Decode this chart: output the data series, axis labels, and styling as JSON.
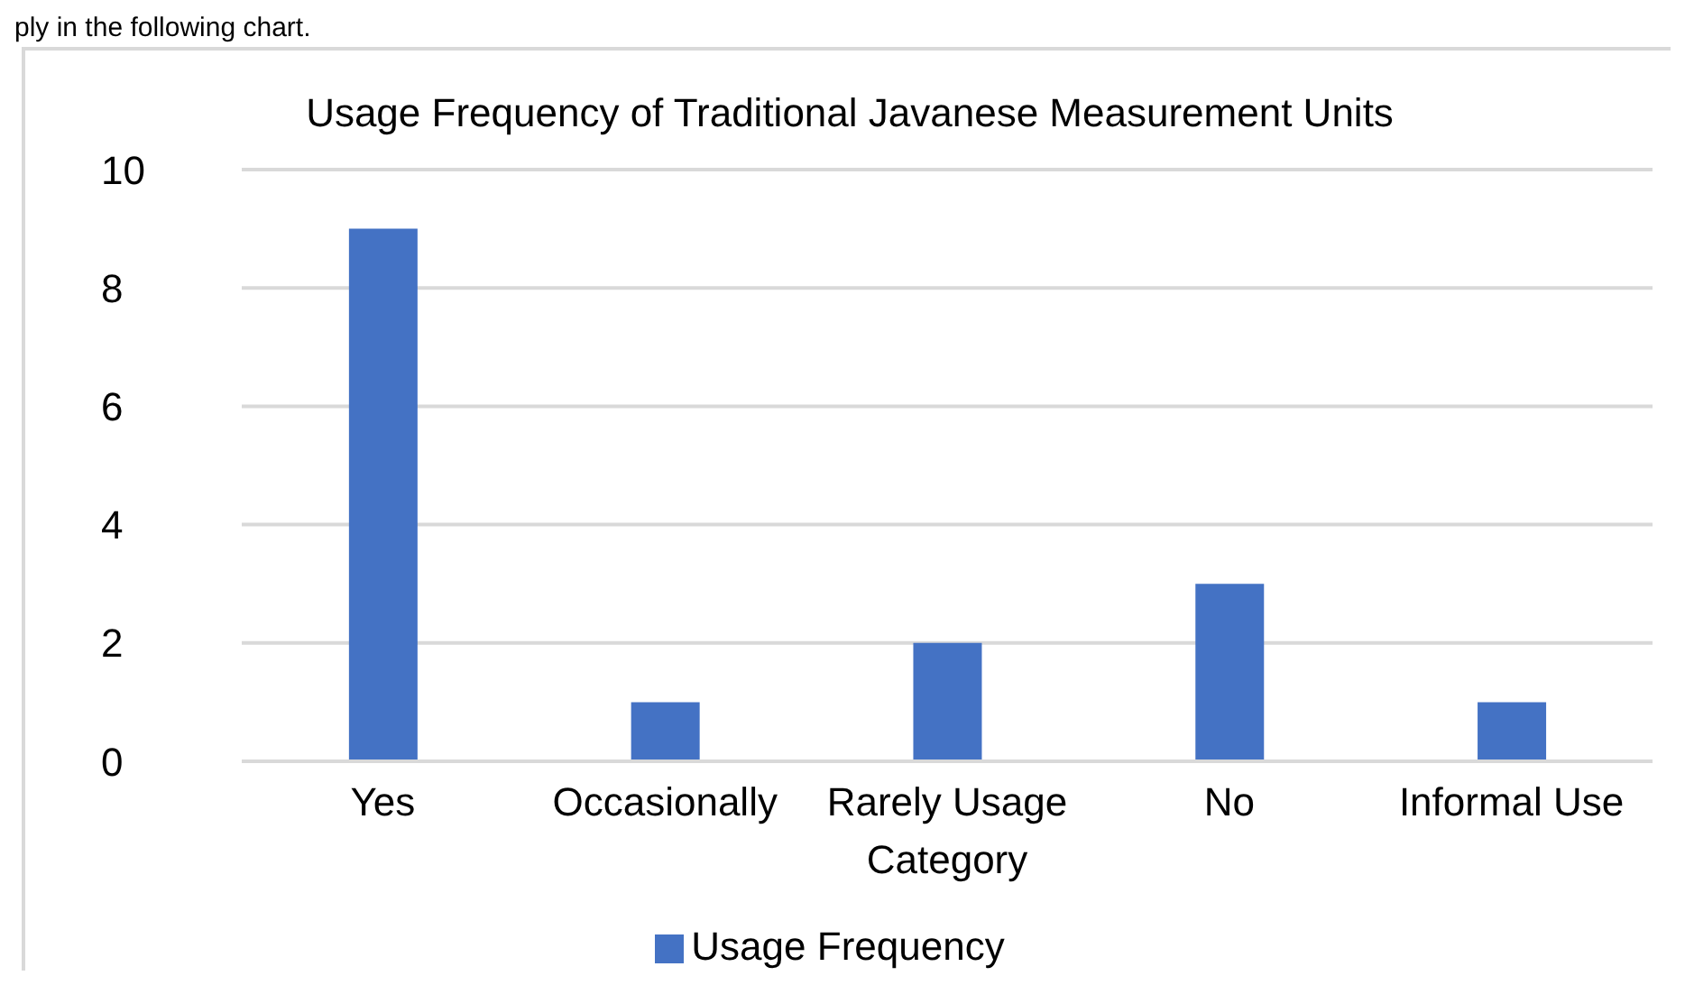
{
  "chart_data": {
    "type": "bar",
    "title": "Usage Frequency of Traditional Javanese Measurement Units",
    "annotations": [
      "ply in the following chart."
    ],
    "categories": [
      "Yes",
      "Occasionally",
      "Rarely Usage Category",
      "No",
      "Informal Use"
    ],
    "series": [
      {
        "name": "Usage Frequency",
        "color": "#4472c4",
        "values": [
          9,
          1,
          2,
          3,
          1
        ]
      }
    ],
    "ylim": [
      0,
      10
    ],
    "yticks": [
      0,
      2,
      4,
      6,
      8,
      10
    ],
    "grid": "y",
    "legend": "bottom"
  }
}
